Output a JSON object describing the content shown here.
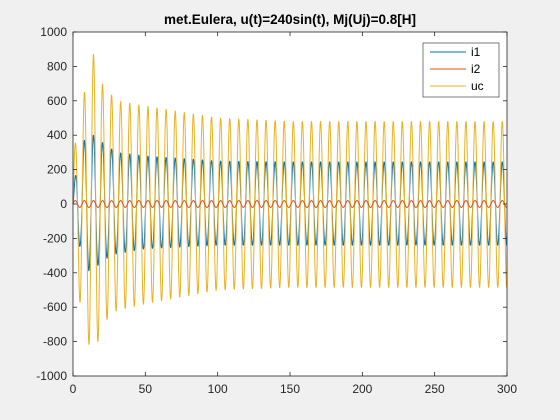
{
  "chart_data": {
    "type": "line",
    "title": "met.Eulera, u(t)=240sin(t), Mj(Uj)=0.8[H]",
    "xlabel": "",
    "ylabel": "",
    "xlim": [
      0,
      300
    ],
    "ylim": [
      -1000,
      1000
    ],
    "x_ticks": [
      "0",
      "50",
      "100",
      "150",
      "200",
      "250",
      "300"
    ],
    "y_ticks": [
      "1000",
      "800",
      "600",
      "400",
      "200",
      "0",
      "-200",
      "-400",
      "-600",
      "-800",
      "-1000"
    ],
    "grid": false,
    "legend_position": "top-right",
    "series": [
      {
        "name": "i1",
        "color": "#0072bd",
        "shape": "oscillation",
        "period": 6.28,
        "steady_amplitude": 240,
        "peaks": [
          [
            0,
            80
          ],
          [
            5,
            330
          ],
          [
            10,
            400
          ],
          [
            15,
            400
          ],
          [
            20,
            360
          ],
          [
            30,
            300
          ],
          [
            50,
            280
          ],
          [
            100,
            250
          ],
          [
            150,
            245
          ],
          [
            200,
            245
          ],
          [
            300,
            245
          ]
        ],
        "troughs": [
          [
            0,
            -200
          ],
          [
            5,
            -250
          ],
          [
            10,
            -390
          ],
          [
            15,
            -380
          ],
          [
            20,
            -330
          ],
          [
            30,
            -290
          ],
          [
            50,
            -260
          ],
          [
            100,
            -240
          ],
          [
            150,
            -240
          ],
          [
            200,
            -240
          ],
          [
            300,
            -240
          ]
        ]
      },
      {
        "name": "i2",
        "color": "#d95319",
        "shape": "oscillation",
        "period": 6.28,
        "steady_amplitude": 20,
        "peaks": [
          [
            0,
            20
          ],
          [
            300,
            20
          ]
        ],
        "troughs": [
          [
            0,
            -20
          ],
          [
            300,
            -20
          ]
        ]
      },
      {
        "name": "uc",
        "color": "#edb120",
        "shape": "oscillation",
        "period": 6.28,
        "steady_amplitude": 480,
        "peaks": [
          [
            0,
            300
          ],
          [
            5,
            470
          ],
          [
            10,
            780
          ],
          [
            15,
            890
          ],
          [
            20,
            700
          ],
          [
            30,
            600
          ],
          [
            50,
            570
          ],
          [
            100,
            500
          ],
          [
            150,
            480
          ],
          [
            200,
            480
          ],
          [
            300,
            480
          ]
        ],
        "troughs": [
          [
            0,
            -180
          ],
          [
            5,
            -590
          ],
          [
            10,
            -800
          ],
          [
            15,
            -880
          ],
          [
            20,
            -700
          ],
          [
            30,
            -620
          ],
          [
            50,
            -580
          ],
          [
            100,
            -500
          ],
          [
            150,
            -485
          ],
          [
            200,
            -485
          ],
          [
            300,
            -485
          ]
        ]
      }
    ]
  }
}
